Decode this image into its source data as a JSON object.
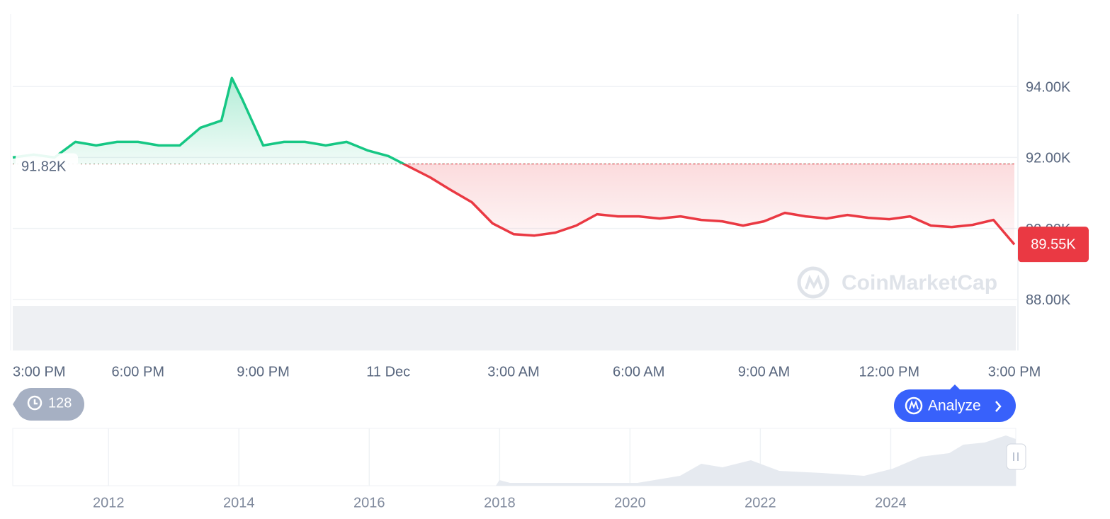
{
  "chart_data": [
    {
      "type": "line",
      "x": [
        0,
        0.5,
        1,
        1.5,
        2,
        2.5,
        3,
        3.5,
        4,
        4.5,
        5,
        5.25,
        5.5,
        6,
        6.5,
        7,
        7.5,
        8,
        8.5,
        9,
        9.5,
        10,
        10.5,
        11,
        11.5,
        12,
        12.5,
        13,
        13.5,
        14,
        14.5,
        15,
        15.5,
        16,
        16.5,
        17,
        17.5,
        18,
        18.5,
        19,
        19.5,
        20,
        20.5,
        21,
        21.5,
        22,
        22.5,
        23,
        23.5,
        24
      ],
      "values": [
        92000,
        92080,
        92000,
        92440,
        92340,
        92440,
        92440,
        92340,
        92340,
        92840,
        93040,
        94240,
        93640,
        92340,
        92440,
        92440,
        92340,
        92440,
        92200,
        92040,
        91740,
        91440,
        91080,
        90740,
        90140,
        89840,
        89800,
        89880,
        90080,
        90400,
        90340,
        90340,
        90280,
        90340,
        90240,
        90200,
        90080,
        90200,
        90440,
        90340,
        90280,
        90380,
        90300,
        90260,
        90340,
        90080,
        90040,
        90100,
        90240,
        89550
      ],
      "up_color": "#16c784",
      "down_color": "#ea3943",
      "reference_price": {
        "value": 91820,
        "label": "91.82K"
      },
      "current_price": {
        "value": 89550,
        "label": "89.55K"
      },
      "xlim": [
        0,
        24
      ],
      "xticks": [
        {
          "value": 0,
          "label": "3:00 PM"
        },
        {
          "value": 3,
          "label": "6:00 PM"
        },
        {
          "value": 6,
          "label": "9:00 PM"
        },
        {
          "value": 9,
          "label": "11 Dec"
        },
        {
          "value": 12,
          "label": "3:00 AM"
        },
        {
          "value": 15,
          "label": "6:00 AM"
        },
        {
          "value": 18,
          "label": "9:00 AM"
        },
        {
          "value": 21,
          "label": "12:00 PM"
        },
        {
          "value": 24,
          "label": "3:00 PM"
        }
      ],
      "ylim": [
        86560,
        96040
      ],
      "yticks": [
        {
          "value": 88000,
          "label": "88.00K"
        },
        {
          "value": 90000,
          "label": "90.00K"
        },
        {
          "value": 92000,
          "label": "92.00K"
        },
        {
          "value": 94000,
          "label": "94.00K"
        }
      ],
      "grid": true
    },
    {
      "type": "navigator",
      "xlim": [
        2010.53,
        2025.93
      ],
      "xticks": [
        2012,
        2014,
        2016,
        2018,
        2020,
        2022,
        2024
      ]
    }
  ],
  "watermark": "CoinMarketCap",
  "history_badge": "128",
  "analyze_button": "Analyze"
}
